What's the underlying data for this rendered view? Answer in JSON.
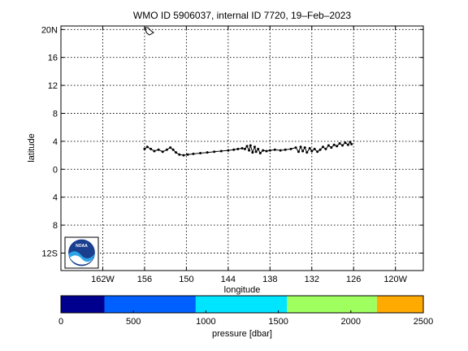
{
  "chart_data": {
    "type": "scatter",
    "title": "WMO ID 5906037, internal ID 7720, 19–Feb–2023",
    "xlabel": "longitude",
    "ylabel": "latitude",
    "xlim": [
      -168,
      -116
    ],
    "ylim": [
      -14.5,
      20.5
    ],
    "grid": true,
    "x_ticks": [
      {
        "value": -162,
        "label": "162W"
      },
      {
        "value": -156,
        "label": "156"
      },
      {
        "value": -150,
        "label": "150"
      },
      {
        "value": -144,
        "label": "144"
      },
      {
        "value": -138,
        "label": "138"
      },
      {
        "value": -132,
        "label": "132"
      },
      {
        "value": -126,
        "label": "126"
      },
      {
        "value": -120,
        "label": "120W"
      }
    ],
    "y_ticks": [
      {
        "value": 20,
        "label": "20N"
      },
      {
        "value": 16,
        "label": "16"
      },
      {
        "value": 12,
        "label": "12"
      },
      {
        "value": 8,
        "label": "8"
      },
      {
        "value": 4,
        "label": "4"
      },
      {
        "value": 0,
        "label": "0"
      },
      {
        "value": -4,
        "label": "4"
      },
      {
        "value": -8,
        "label": "8"
      },
      {
        "value": -12,
        "label": "12S"
      }
    ],
    "series": [
      {
        "color": "#000000",
        "points": [
          [
            -156.0,
            2.9
          ],
          [
            -155.6,
            3.2
          ],
          [
            -155.1,
            2.9
          ],
          [
            -154.6,
            2.6
          ],
          [
            -154.0,
            2.8
          ],
          [
            -153.4,
            2.5
          ],
          [
            -152.8,
            2.8
          ],
          [
            -152.3,
            3.1
          ],
          [
            -151.9,
            2.8
          ],
          [
            -151.5,
            2.4
          ],
          [
            -151.0,
            2.1
          ],
          [
            -150.4,
            2.0
          ],
          [
            -149.8,
            2.1
          ],
          [
            -149.0,
            2.2
          ],
          [
            -148.0,
            2.3
          ],
          [
            -147.0,
            2.4
          ],
          [
            -146.0,
            2.5
          ],
          [
            -145.0,
            2.6
          ],
          [
            -144.0,
            2.7
          ],
          [
            -143.2,
            2.8
          ],
          [
            -142.6,
            2.9
          ],
          [
            -142.0,
            3.0
          ],
          [
            -141.6,
            2.9
          ],
          [
            -141.3,
            3.3
          ],
          [
            -141.0,
            2.7
          ],
          [
            -140.8,
            3.4
          ],
          [
            -140.5,
            2.4
          ],
          [
            -140.2,
            3.2
          ],
          [
            -140.0,
            2.5
          ],
          [
            -139.7,
            2.9
          ],
          [
            -139.4,
            2.3
          ],
          [
            -139.0,
            2.7
          ],
          [
            -138.5,
            2.6
          ],
          [
            -138.0,
            2.7
          ],
          [
            -137.3,
            2.8
          ],
          [
            -136.5,
            2.7
          ],
          [
            -135.8,
            2.8
          ],
          [
            -135.0,
            2.9
          ],
          [
            -134.3,
            3.1
          ],
          [
            -133.9,
            2.5
          ],
          [
            -133.6,
            3.2
          ],
          [
            -133.3,
            2.6
          ],
          [
            -133.0,
            3.1
          ],
          [
            -132.7,
            2.4
          ],
          [
            -132.3,
            3.0
          ],
          [
            -132.0,
            2.6
          ],
          [
            -131.6,
            2.9
          ],
          [
            -131.2,
            2.5
          ],
          [
            -130.8,
            2.8
          ],
          [
            -130.4,
            3.2
          ],
          [
            -130.0,
            2.9
          ],
          [
            -129.6,
            3.4
          ],
          [
            -129.2,
            3.1
          ],
          [
            -128.8,
            3.5
          ],
          [
            -128.4,
            3.3
          ],
          [
            -128.0,
            3.7
          ],
          [
            -127.6,
            3.4
          ],
          [
            -127.2,
            3.8
          ],
          [
            -126.8,
            3.5
          ],
          [
            -126.5,
            3.9
          ],
          [
            -126.3,
            3.6
          ]
        ]
      }
    ],
    "colorbar": {
      "label": "pressure [dbar]",
      "range": [
        0,
        2500
      ],
      "ticks": [
        "0",
        "500",
        "1000",
        "1500",
        "2000",
        "2500"
      ],
      "bands": [
        {
          "from": 0,
          "to": 300,
          "color": "#00008f"
        },
        {
          "from": 300,
          "to": 930,
          "color": "#0060ff"
        },
        {
          "from": 930,
          "to": 1560,
          "color": "#00e5ff"
        },
        {
          "from": 1560,
          "to": 2180,
          "color": "#9fff5f"
        },
        {
          "from": 2180,
          "to": 2500,
          "color": "#ffaa00"
        }
      ]
    },
    "logo_text": "NOAA"
  }
}
